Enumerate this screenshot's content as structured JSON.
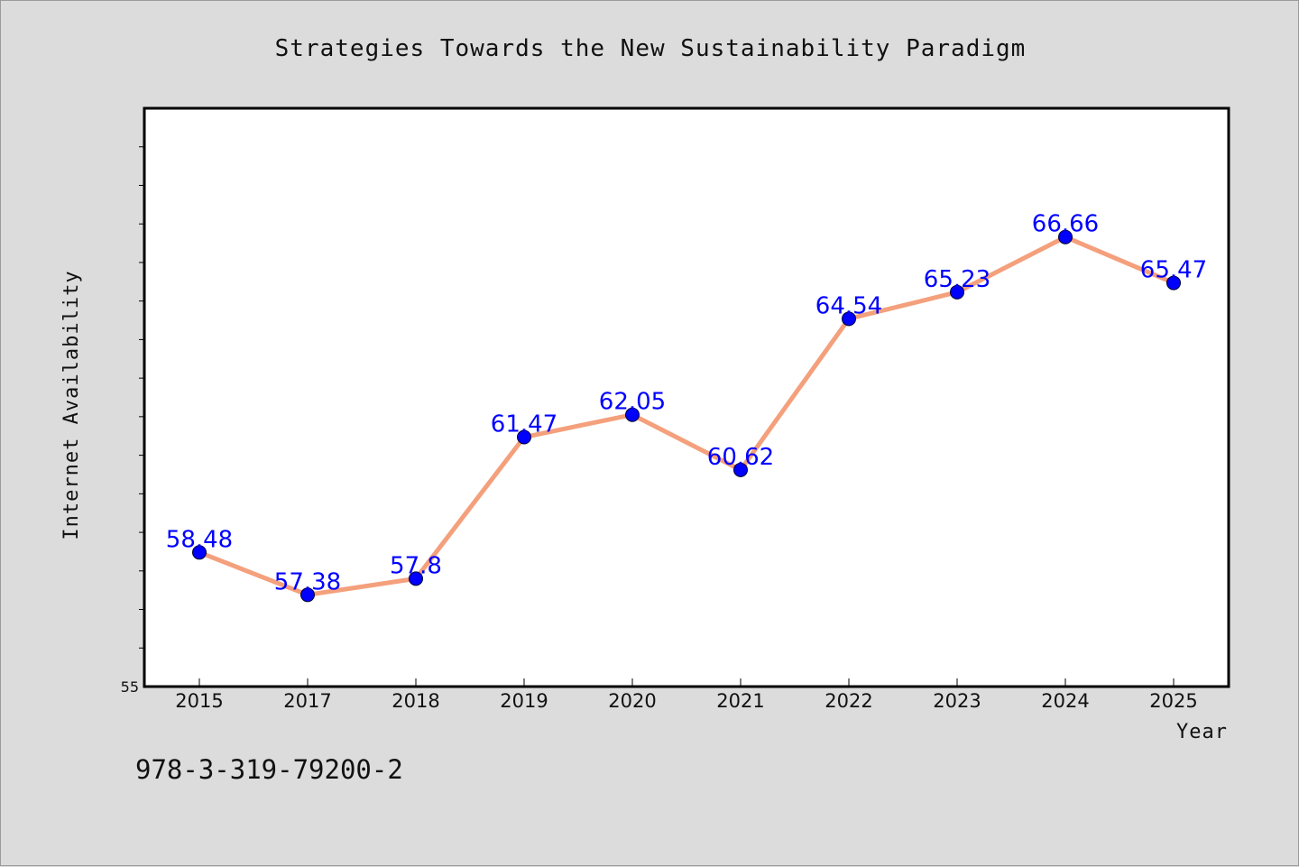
{
  "chart_data": {
    "type": "line",
    "title": "Strategies Towards the New Sustainability Paradigm",
    "xlabel": "Year",
    "ylabel": "Internet Availability",
    "categories": [
      "2015",
      "2017",
      "2018",
      "2019",
      "2020",
      "2021",
      "2022",
      "2023",
      "2024",
      "2025"
    ],
    "series": [
      {
        "values": [
          58.48,
          57.38,
          57.8,
          61.47,
          62.05,
          60.62,
          64.54,
          65.23,
          66.66,
          65.47
        ],
        "labels": [
          "58.48",
          "57.38",
          "57.8",
          "61.47",
          "62.05",
          "60.62",
          "64.54",
          "65.23",
          "66.66",
          "65.47"
        ]
      }
    ],
    "ylim": [
      55,
      70
    ],
    "y_tick_labels": [
      "55"
    ],
    "y_minor_tick_step": 1,
    "grid": false,
    "legend": "none",
    "colors": {
      "line": "#f4a07c",
      "marker": "#0000ff",
      "data_label": "#0000ff",
      "plot_background": "#ffffff",
      "figure_background": "#dcdcdc"
    }
  },
  "footnote": "978-3-319-79200-2"
}
